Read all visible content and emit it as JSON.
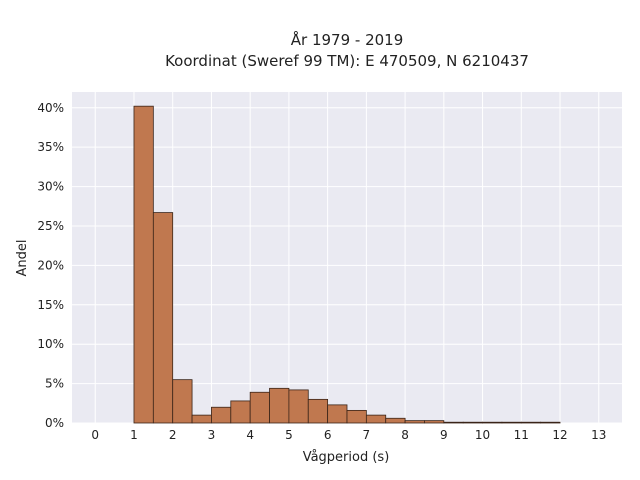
{
  "chart_data": {
    "type": "bar",
    "title_lines": [
      "År 1979 - 2019",
      "Koordinat (Sweref 99 TM): E 470509, N 6210437"
    ],
    "xlabel": "Vågperiod (s)",
    "ylabel": "Andel",
    "xlim": [
      -0.6,
      13.6
    ],
    "ylim": [
      0,
      0.42
    ],
    "x_ticks": [
      0,
      1,
      2,
      3,
      4,
      5,
      6,
      7,
      8,
      9,
      10,
      11,
      12,
      13
    ],
    "y_ticks": [
      0,
      0.05,
      0.1,
      0.15,
      0.2,
      0.25,
      0.3,
      0.35,
      0.4
    ],
    "y_tick_labels": [
      "0%",
      "5%",
      "10%",
      "15%",
      "20%",
      "25%",
      "30%",
      "35%",
      "40%"
    ],
    "bin_width": 0.5,
    "bins": [
      {
        "start": 1.0,
        "value": 0.402
      },
      {
        "start": 1.5,
        "value": 0.267
      },
      {
        "start": 2.0,
        "value": 0.055
      },
      {
        "start": 2.5,
        "value": 0.01
      },
      {
        "start": 3.0,
        "value": 0.02
      },
      {
        "start": 3.5,
        "value": 0.028
      },
      {
        "start": 4.0,
        "value": 0.039
      },
      {
        "start": 4.5,
        "value": 0.044
      },
      {
        "start": 5.0,
        "value": 0.042
      },
      {
        "start": 5.5,
        "value": 0.03
      },
      {
        "start": 6.0,
        "value": 0.023
      },
      {
        "start": 6.5,
        "value": 0.016
      },
      {
        "start": 7.0,
        "value": 0.01
      },
      {
        "start": 7.5,
        "value": 0.006
      },
      {
        "start": 8.0,
        "value": 0.003
      },
      {
        "start": 8.5,
        "value": 0.003
      },
      {
        "start": 9.0,
        "value": 0.001
      },
      {
        "start": 9.5,
        "value": 0.001
      },
      {
        "start": 10.0,
        "value": 0.001
      },
      {
        "start": 10.5,
        "value": 0.001
      },
      {
        "start": 11.0,
        "value": 0.001
      },
      {
        "start": 11.5,
        "value": 0.001
      }
    ],
    "grid": true,
    "colors": {
      "bar": "#c0784f",
      "edge": "#3a2418",
      "background": "#eaeaf2",
      "grid": "#ffffff"
    }
  }
}
